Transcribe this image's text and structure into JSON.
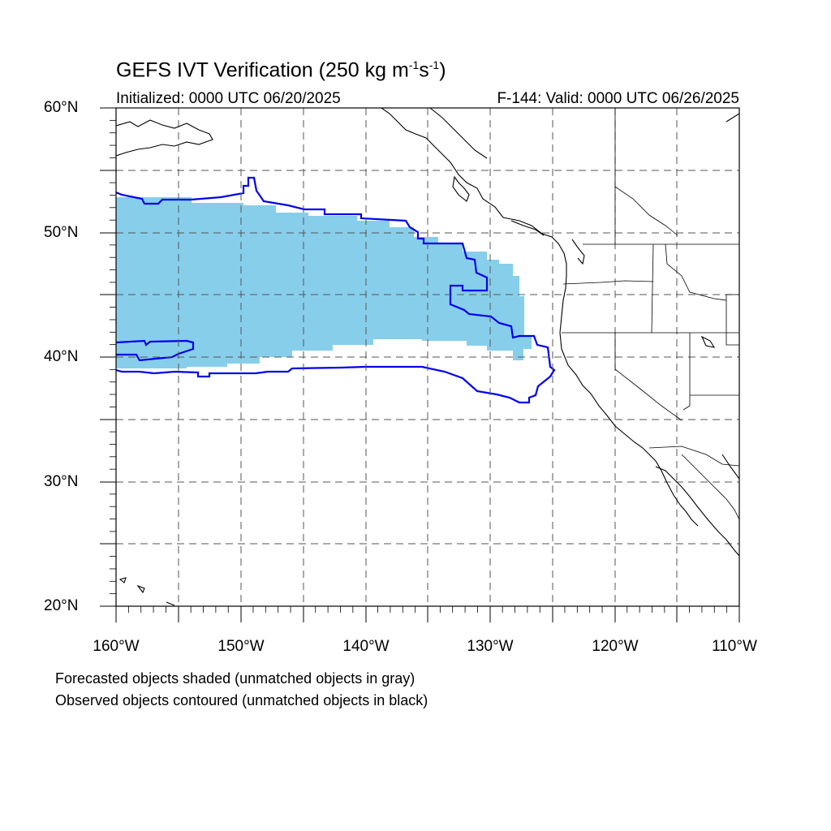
{
  "title": {
    "text": "GEFS IVT Verification (250 kg m",
    "exp1": "-1",
    "mid": "s",
    "exp2": "-1",
    "close": ")"
  },
  "subtitle": {
    "left": "Initialized: 0000 UTC 06/20/2025",
    "right": "F-144: Valid: 0000 UTC 06/26/2025"
  },
  "map": {
    "lon_range": [
      -160,
      -110
    ],
    "lat_range": [
      20,
      60
    ],
    "gridlines": "dashed",
    "grid_spacing_deg": 5,
    "lat_labels": [
      "60°N",
      "50°N",
      "40°N",
      "30°N",
      "20°N"
    ],
    "lon_labels": [
      "160°W",
      "150°W",
      "140°W",
      "130°W",
      "120°W",
      "110°W"
    ],
    "forecast_fill_color": "#87CEEB",
    "observed_contour_color": "#0000EE",
    "coastline_color": "#000000"
  },
  "notes": [
    "Forecasted objects shaded (unmatched objects in gray)",
    "Observed objects contoured (unmatched objects in black)"
  ]
}
